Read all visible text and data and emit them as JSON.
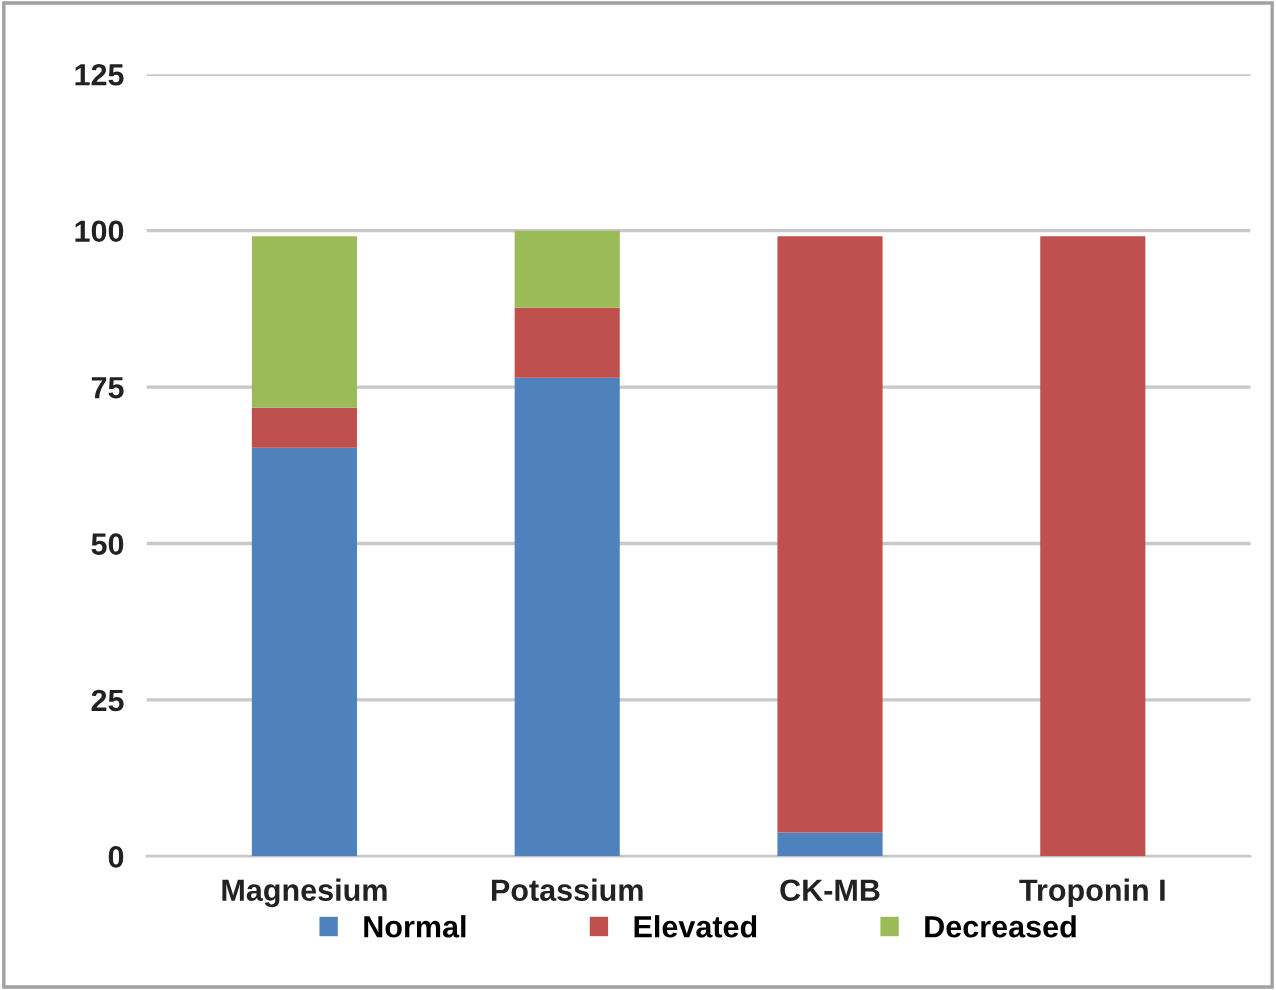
{
  "chart_data": {
    "type": "bar",
    "stacked": true,
    "categories": [
      "Magnesium",
      "Potassium",
      "CK-MB",
      "Troponin I"
    ],
    "series": [
      {
        "name": "Normal",
        "color": "#4f81bd",
        "values": [
          65.3,
          76.5,
          3.8,
          0
        ]
      },
      {
        "name": "Elevated",
        "color": "#c0504d",
        "values": [
          6.4,
          11.2,
          95.3,
          99.1
        ]
      },
      {
        "name": "Decreased",
        "color": "#9bbb59",
        "values": [
          27.4,
          12.3,
          0,
          0
        ]
      }
    ],
    "ylim": [
      0,
      125
    ],
    "yticks": [
      0,
      25,
      50,
      75,
      100,
      125
    ],
    "grid": "y",
    "legend": "bottom"
  }
}
